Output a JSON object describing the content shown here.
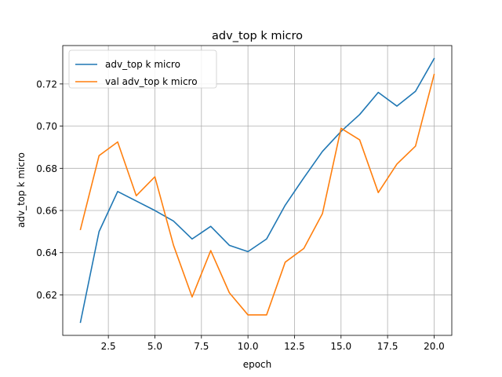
{
  "chart_data": {
    "type": "line",
    "title": "adv_top k micro",
    "xlabel": "epoch",
    "ylabel": "adv_top k micro",
    "x": [
      1,
      2,
      3,
      4,
      5,
      6,
      7,
      8,
      9,
      10,
      11,
      12,
      13,
      14,
      15,
      16,
      17,
      18,
      19,
      20
    ],
    "series": [
      {
        "name": "adv_top k micro",
        "color": "#1f77b4",
        "values": [
          0.607,
          0.65,
          0.669,
          0.6645,
          0.66,
          0.655,
          0.6465,
          0.6525,
          0.6435,
          0.6405,
          0.6465,
          0.6625,
          0.6755,
          0.688,
          0.6975,
          0.7055,
          0.716,
          0.7095,
          0.7165,
          0.732
        ]
      },
      {
        "name": "val adv_top k micro",
        "color": "#ff7f0e",
        "values": [
          0.651,
          0.686,
          0.6925,
          0.667,
          0.676,
          0.6435,
          0.619,
          0.641,
          0.621,
          0.6105,
          0.6105,
          0.6355,
          0.642,
          0.6585,
          0.699,
          0.6935,
          0.6685,
          0.682,
          0.6905,
          0.7245
        ]
      }
    ],
    "xlim": [
      0.05,
      20.95
    ],
    "ylim": [
      0.6008,
      0.7382
    ],
    "xticks": [
      2.5,
      5.0,
      7.5,
      10.0,
      12.5,
      15.0,
      17.5,
      20.0
    ],
    "xtick_labels": [
      "2.5",
      "5.0",
      "7.5",
      "10.0",
      "12.5",
      "15.0",
      "17.5",
      "20.0"
    ],
    "yticks": [
      0.62,
      0.64,
      0.66,
      0.68,
      0.7,
      0.72
    ],
    "ytick_labels": [
      "0.62",
      "0.64",
      "0.66",
      "0.68",
      "0.70",
      "0.72"
    ],
    "grid": true,
    "legend_position": "top-left"
  }
}
